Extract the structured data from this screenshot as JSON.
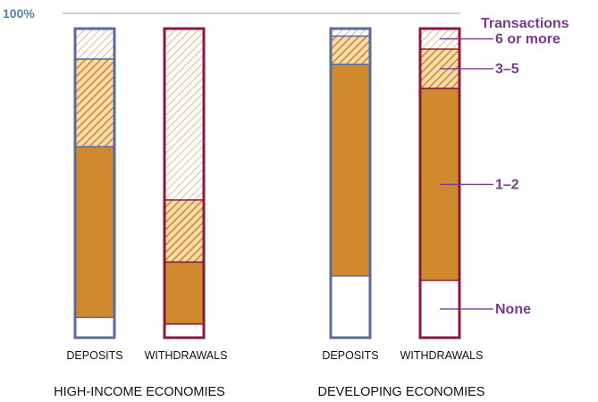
{
  "chart_data": {
    "type": "bar",
    "stacked": true,
    "normalized": true,
    "title": "",
    "y_max_label": "100%",
    "ylim": [
      0,
      100
    ],
    "legend_title": "Transactions",
    "segments": [
      "None",
      "1–2",
      "3–5",
      "6 or more"
    ],
    "groups": [
      {
        "label": "HIGH-INCOME ECONOMIES",
        "bars": [
          {
            "label": "DEPOSITS",
            "color_frame": "#5b6b9b",
            "values": [
              6.7,
              56.6,
              29.1,
              10.1
            ]
          },
          {
            "label": "WITHDRAWALS",
            "color_frame": "#8b1a3c",
            "values": [
              4.5,
              20.4,
              20.4,
              56.4
            ]
          }
        ]
      },
      {
        "label": "DEVELOPING ECONOMIES",
        "bars": [
          {
            "label": "DEPOSITS",
            "color_frame": "#5b6b9b",
            "values": [
              19.8,
              67.8,
              9.1,
              2.4
            ]
          },
          {
            "label": "WITHDRAWALS",
            "color_frame": "#8b1a3c",
            "values": [
              18.4,
              61.7,
              12.6,
              6.6
            ]
          }
        ]
      }
    ],
    "colors": {
      "solid": "#d08a2e",
      "hatch_dense": "#d08a2e",
      "hatch_light": "#e0a96a",
      "none_fill": "#ffffff",
      "gridline": "#a9c0dc",
      "legend_text": "#7b3b8c",
      "pct_text": "#5b7fb2"
    }
  }
}
